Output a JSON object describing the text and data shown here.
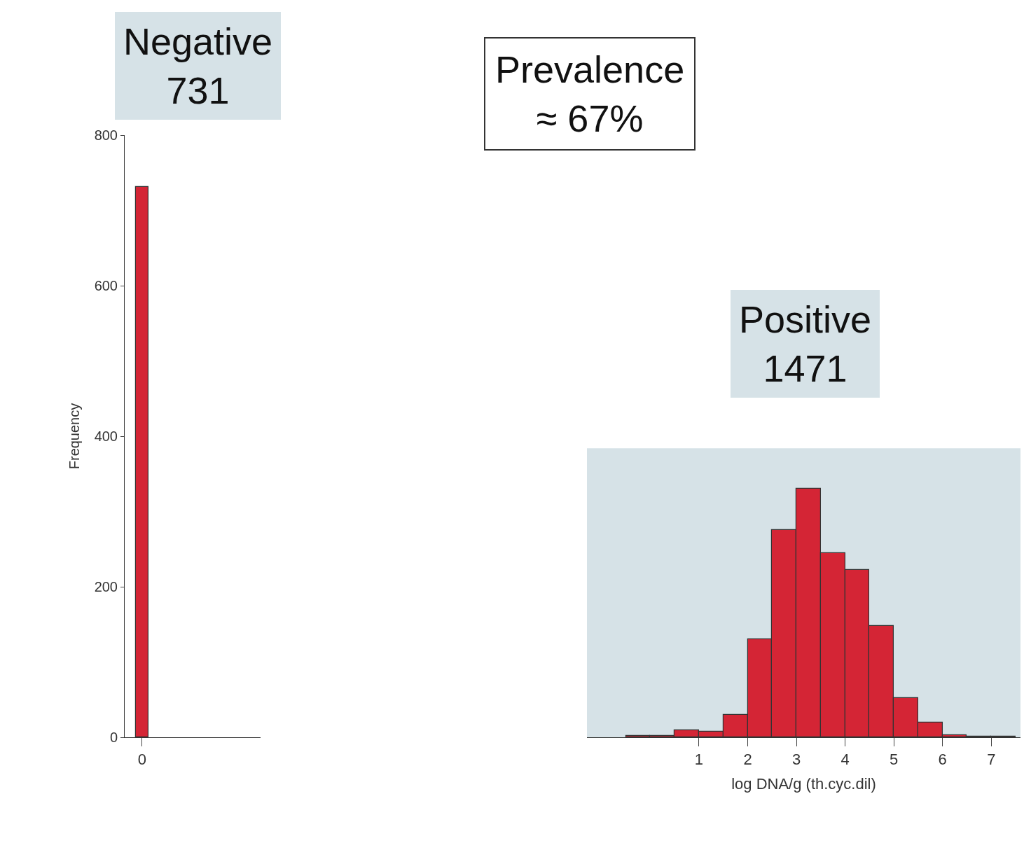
{
  "chart_data": [
    {
      "type": "bar",
      "categories": [
        "0"
      ],
      "values": [
        731
      ],
      "color": "#d42535",
      "ylim": [
        0,
        800
      ],
      "yticks": [
        0,
        200,
        400,
        600,
        800
      ],
      "ylabel": "Frequency",
      "annotations": [
        "Negative\n731",
        "Prevalence\n≈ 67%"
      ]
    },
    {
      "type": "histogram",
      "bins": [
        -0.5,
        0,
        0.5,
        1,
        1.5,
        2,
        2.5,
        3,
        3.5,
        4,
        4.5,
        5,
        5.5,
        6,
        6.5,
        7,
        7.5
      ],
      "values": [
        2,
        2,
        9,
        7,
        30,
        130,
        275,
        330,
        245,
        222,
        148,
        52,
        20,
        3,
        1,
        1
      ],
      "color": "#d42535",
      "xlim": [
        -1.3,
        7.6
      ],
      "xticks": [
        1,
        2,
        3,
        4,
        5,
        6,
        7
      ],
      "ylim": [
        0,
        800
      ],
      "yticks": [
        0,
        200,
        400,
        600,
        800
      ],
      "tick_labels": "x",
      "xlabel": "log DNA/g (th.cyc.dil)",
      "bands": [
        {
          "axis": "x",
          "from": -1.3,
          "to": 7.6,
          "color": "#d6e2e7"
        }
      ],
      "annotations": [
        "Positive\n1471"
      ]
    }
  ]
}
